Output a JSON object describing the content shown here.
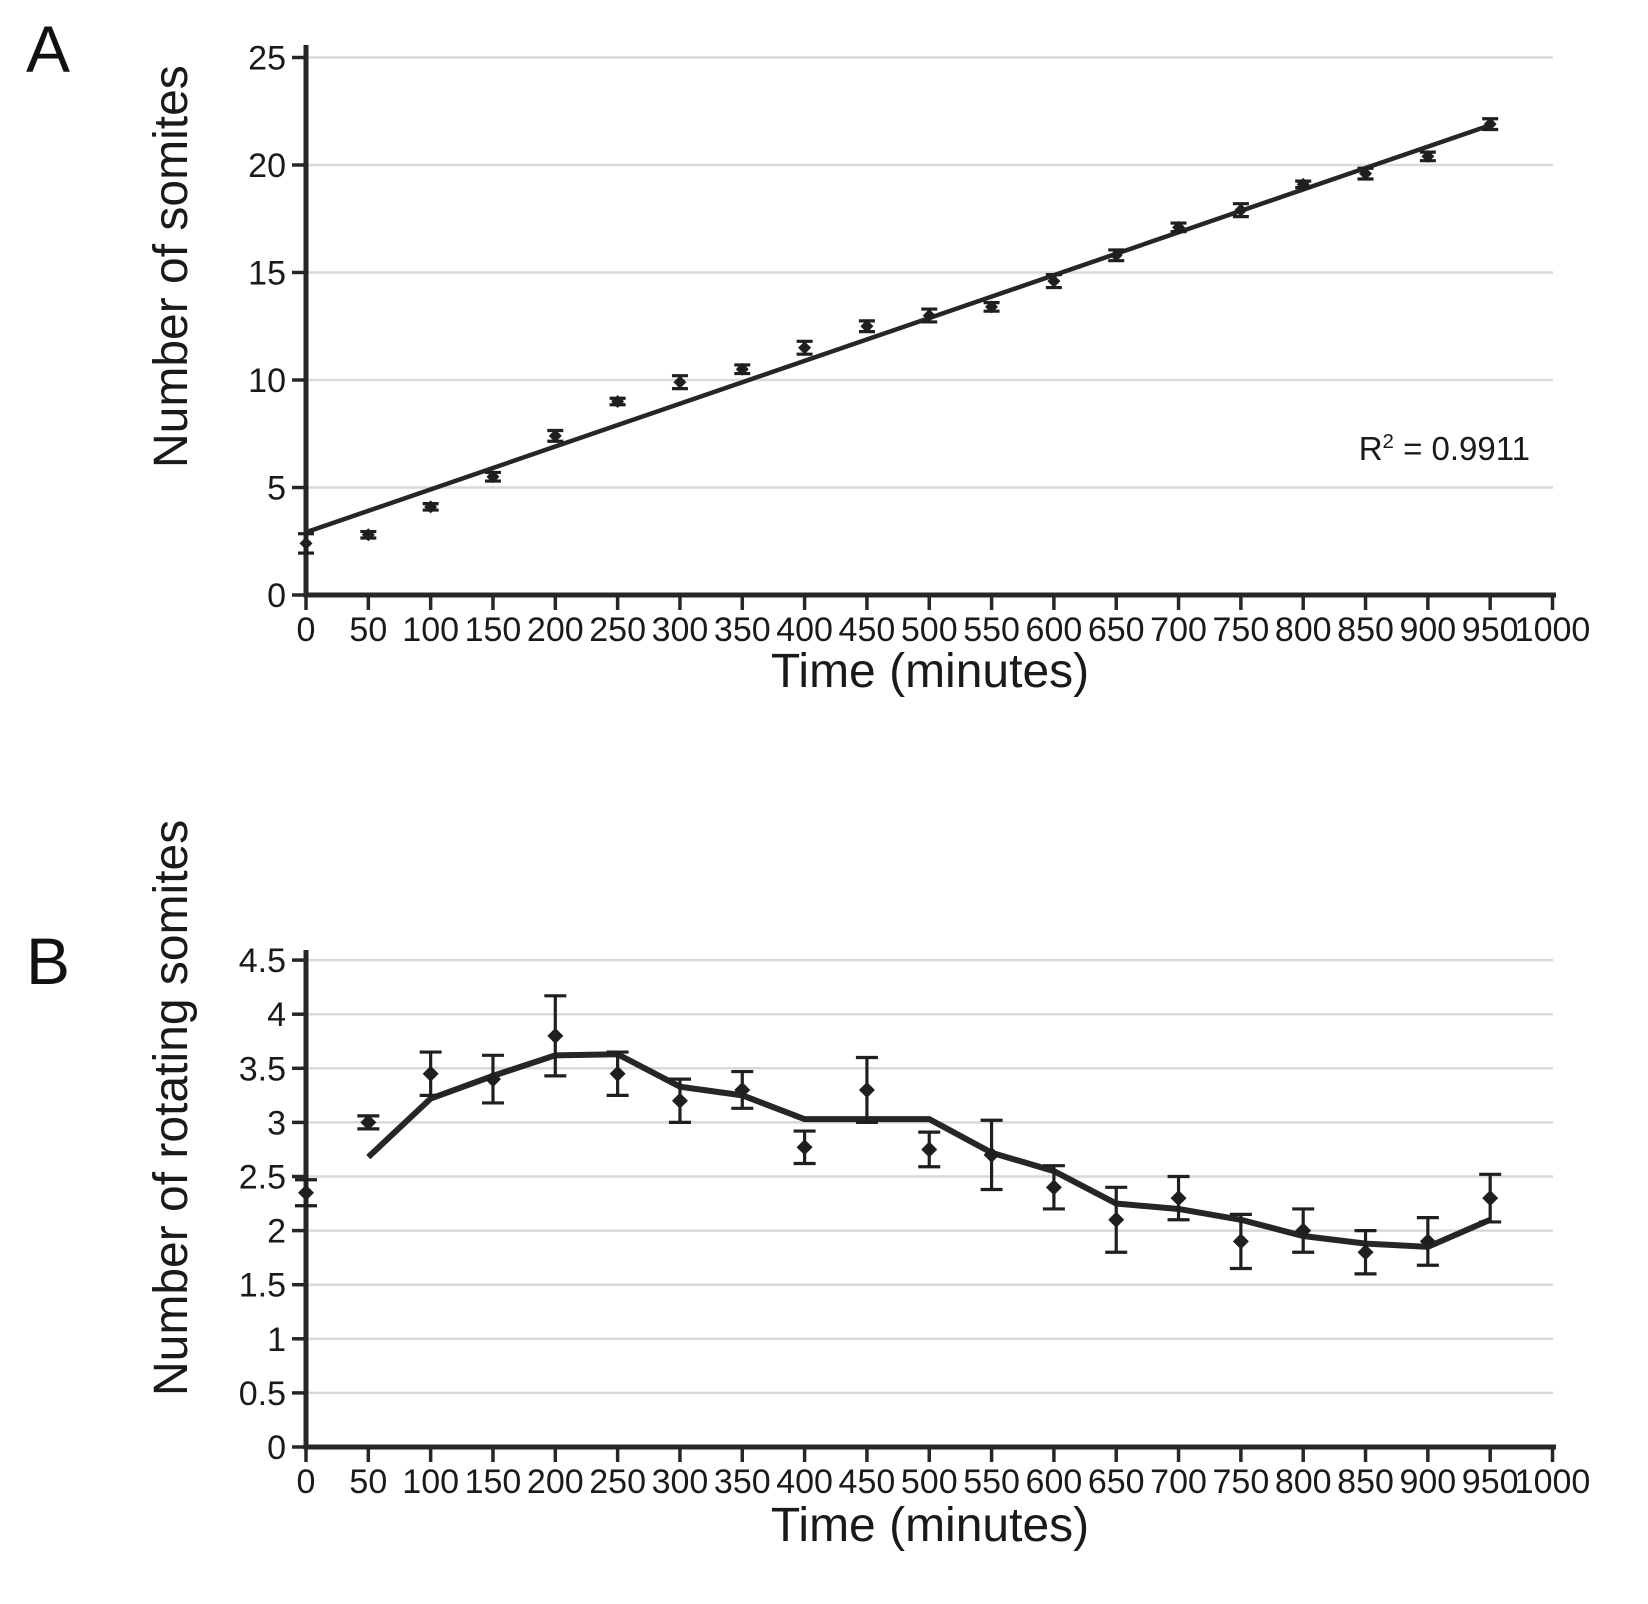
{
  "colors": {
    "background": "#ffffff",
    "axis": "#262626",
    "grid": "#d9d9d9",
    "marker": "#1f1f1f",
    "trend": "#262626",
    "text": "#1a1a1a"
  },
  "chart_data": [
    {
      "type": "scatter",
      "panel_label": "A",
      "title": "",
      "xlabel": "Time (minutes)",
      "ylabel": "Number of somites",
      "xlim": [
        0,
        1000
      ],
      "ylim": [
        0,
        25
      ],
      "grid": true,
      "legend": "none",
      "x_ticks": [
        0,
        50,
        100,
        150,
        200,
        250,
        300,
        350,
        400,
        450,
        500,
        550,
        600,
        650,
        700,
        750,
        800,
        850,
        900,
        950,
        1000
      ],
      "y_ticks": [
        0,
        5,
        10,
        15,
        20,
        25
      ],
      "x": [
        0,
        50,
        100,
        150,
        200,
        250,
        300,
        350,
        400,
        450,
        500,
        550,
        600,
        650,
        700,
        750,
        800,
        850,
        900,
        950
      ],
      "y": [
        2.4,
        2.8,
        4.1,
        5.5,
        7.4,
        9.0,
        9.9,
        10.5,
        11.5,
        12.5,
        13.0,
        13.4,
        14.6,
        15.8,
        17.1,
        17.9,
        19.1,
        19.6,
        20.4,
        21.9
      ],
      "y_err": [
        0.45,
        0.15,
        0.15,
        0.2,
        0.25,
        0.15,
        0.3,
        0.2,
        0.3,
        0.25,
        0.3,
        0.2,
        0.3,
        0.25,
        0.2,
        0.3,
        0.15,
        0.25,
        0.2,
        0.25
      ],
      "fit_line": {
        "x": [
          0,
          950
        ],
        "y": [
          2.92,
          21.85
        ]
      },
      "annotation": {
        "r_base": "R",
        "r_sup": "2",
        "r_rest": " = 0.9911"
      }
    },
    {
      "type": "scatter",
      "panel_label": "B",
      "title": "",
      "xlabel": "Time (minutes)",
      "ylabel": "Number of rotating somites",
      "xlim": [
        0,
        1000
      ],
      "ylim": [
        0,
        4.5
      ],
      "grid": true,
      "legend": "none",
      "x_ticks": [
        0,
        50,
        100,
        150,
        200,
        250,
        300,
        350,
        400,
        450,
        500,
        550,
        600,
        650,
        700,
        750,
        800,
        850,
        900,
        950,
        1000
      ],
      "y_ticks": [
        0,
        0.5,
        1,
        1.5,
        2,
        2.5,
        3,
        3.5,
        4,
        4.5
      ],
      "x": [
        0,
        50,
        100,
        150,
        200,
        250,
        300,
        350,
        400,
        450,
        500,
        550,
        600,
        650,
        700,
        750,
        800,
        850,
        900,
        950
      ],
      "y": [
        2.35,
        3.0,
        3.45,
        3.4,
        3.8,
        3.45,
        3.2,
        3.3,
        2.77,
        3.3,
        2.75,
        2.7,
        2.4,
        2.1,
        2.3,
        1.9,
        2.0,
        1.8,
        1.9,
        2.3
      ],
      "y_err": [
        0.12,
        0.06,
        0.2,
        0.22,
        0.37,
        0.2,
        0.2,
        0.17,
        0.15,
        0.3,
        0.16,
        0.32,
        0.2,
        0.3,
        0.2,
        0.25,
        0.2,
        0.2,
        0.22,
        0.22
      ],
      "trend_line": {
        "x": [
          50,
          100,
          150,
          200,
          250,
          300,
          350,
          400,
          450,
          500,
          550,
          600,
          650,
          700,
          750,
          800,
          850,
          900,
          950
        ],
        "y": [
          2.68,
          3.22,
          3.43,
          3.62,
          3.63,
          3.33,
          3.25,
          3.03,
          3.03,
          3.03,
          2.72,
          2.55,
          2.25,
          2.2,
          2.1,
          1.95,
          1.88,
          1.85,
          2.1
        ]
      }
    }
  ]
}
